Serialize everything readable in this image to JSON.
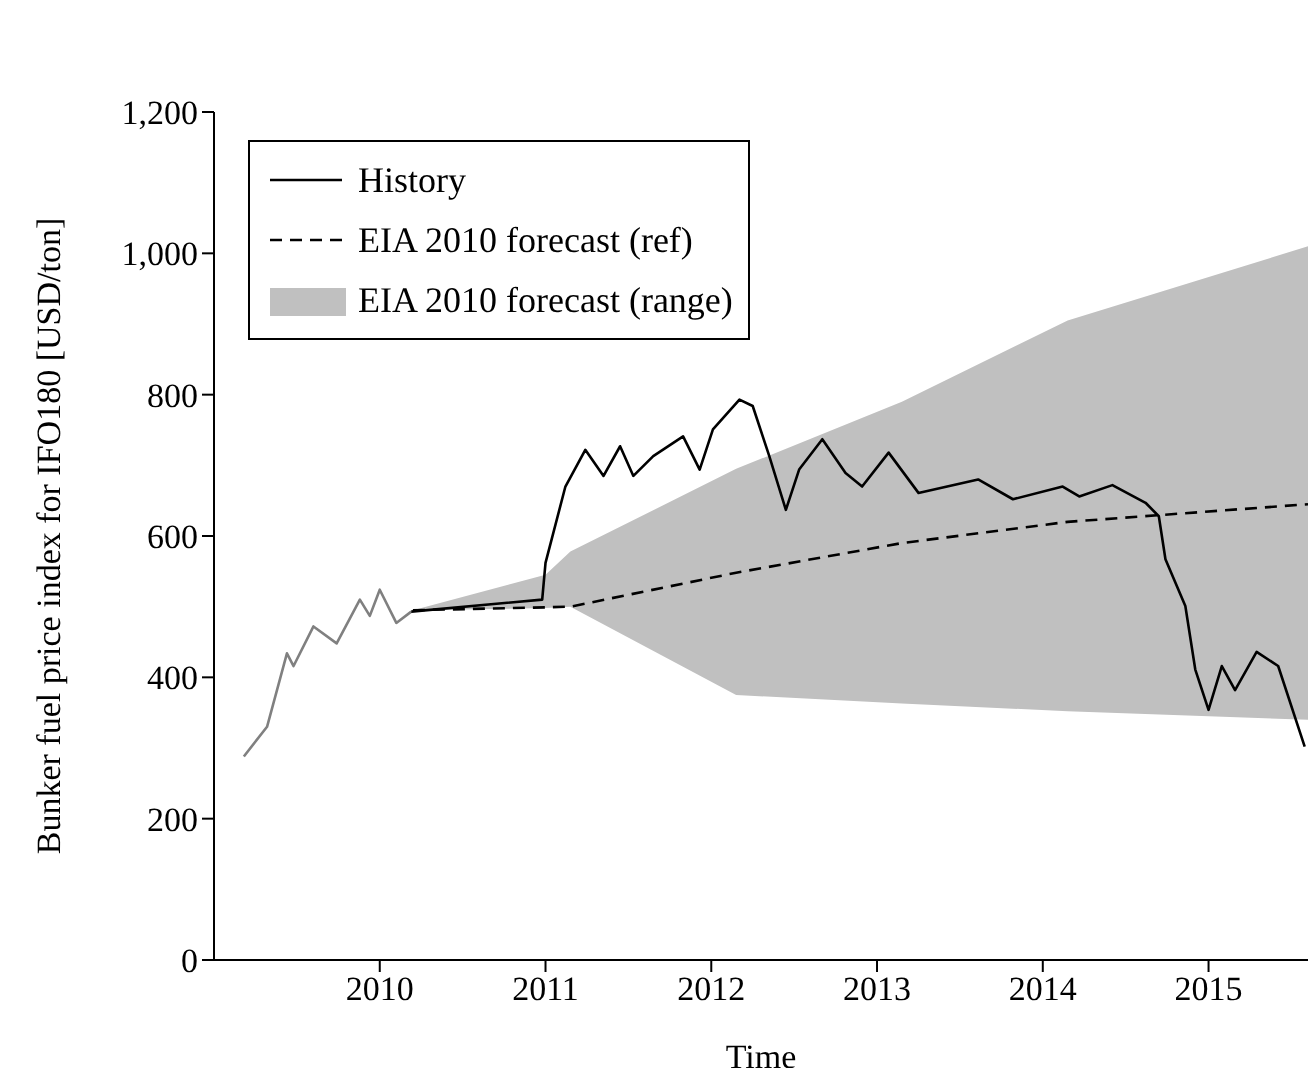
{
  "chart_data": {
    "type": "line",
    "xlabel": "Time",
    "ylabel": "Bunker fuel price index for IFO180 [USD/ton]",
    "xlim": [
      2009,
      2015.6
    ],
    "xticks": [
      2010,
      2011,
      2012,
      2013,
      2014,
      2015
    ],
    "ylim": [
      0,
      1200
    ],
    "yticks": [
      0,
      200,
      400,
      600,
      800,
      {
        "value": 1000,
        "label": "1,000"
      },
      {
        "value": 1200,
        "label": "1,200"
      }
    ],
    "grid": false,
    "legend": "top left",
    "marker": "none",
    "series": [
      {
        "color": "#808080",
        "x": [
          2009.18,
          2009.32,
          2009.44,
          2009.48,
          2009.6,
          2009.74,
          2009.88,
          2009.94,
          2010.0,
          2010.1,
          2010.19
        ],
        "values": [
          288,
          330,
          434,
          416,
          472,
          448,
          510,
          487,
          524,
          477,
          493
        ]
      },
      {
        "name": "History",
        "color": "#000000",
        "x": [
          2010.19,
          2010.98,
          2011.0,
          2011.12,
          2011.24,
          2011.35,
          2011.45,
          2011.53,
          2011.65,
          2011.83,
          2011.93,
          2012.01,
          2012.17,
          2012.25,
          2012.35,
          2012.45,
          2012.53,
          2012.67,
          2012.81,
          2012.91,
          2013.07,
          2013.25,
          2013.61,
          2013.82,
          2014.12,
          2014.22,
          2014.42,
          2014.62,
          2014.7,
          2014.74,
          2014.86,
          2014.92,
          2015.0,
          2015.08,
          2015.16,
          2015.29,
          2015.42,
          2015.58
        ],
        "values": [
          493,
          510,
          562,
          670,
          722,
          685,
          727,
          685,
          713,
          741,
          694,
          751,
          793,
          784,
          713,
          637,
          694,
          737,
          689,
          670,
          718,
          661,
          680,
          652,
          670,
          656,
          672,
          647,
          628,
          567,
          501,
          411,
          354,
          416,
          382,
          436,
          416,
          302
        ]
      },
      {
        "name": "EIA 2010 forecast (ref)",
        "color": "#000000",
        "line_style": "dashed",
        "x": [
          2010.2,
          2011.0,
          2011.15,
          2012.15,
          2013.15,
          2014.15,
          2015.6
        ],
        "values": [
          495,
          499,
          500,
          548,
          590,
          620,
          645
        ],
        "lower": [
          495,
          498,
          500,
          375,
          363,
          352,
          340
        ],
        "upper": [
          495,
          545,
          578,
          695,
          790,
          905,
          1010
        ]
      }
    ],
    "annotations": [
      "EIA 2010 forecast (range)"
    ]
  }
}
